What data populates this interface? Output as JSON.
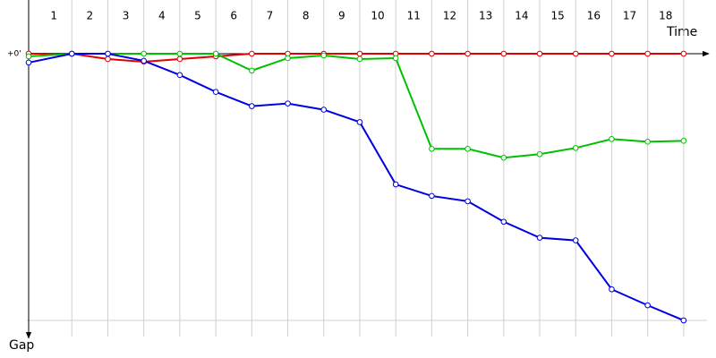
{
  "chart_data": {
    "type": "line",
    "x_label": "Time",
    "y_label": "Gap",
    "x": [
      -0.2,
      1,
      2,
      3,
      4,
      5,
      6,
      7,
      8,
      9,
      10,
      11,
      12,
      13,
      14,
      15,
      16,
      17,
      18
    ],
    "xlim": [
      -0.25,
      18.65
    ],
    "xticks": [
      1,
      2,
      3,
      4,
      5,
      6,
      7,
      8,
      9,
      10,
      11,
      12,
      13,
      14,
      15,
      16,
      17,
      18
    ],
    "ylim": [
      0,
      300
    ],
    "yticks": [
      {
        "value": 0,
        "label": "+0'"
      }
    ],
    "y_inverted": true,
    "grid": true,
    "series": [
      {
        "name": null,
        "color": "#e00000",
        "values": [
          0,
          0,
          6,
          9,
          6,
          3,
          0,
          0,
          0,
          0,
          0,
          0,
          0,
          0,
          0,
          0,
          0,
          0,
          0
        ]
      },
      {
        "name": null,
        "color": "#00c000",
        "values": [
          3,
          0,
          0,
          0,
          0,
          0,
          19,
          5,
          2,
          6,
          5,
          107,
          107,
          117,
          113,
          106,
          96,
          99,
          98
        ]
      },
      {
        "name": null,
        "color": "#0000e0",
        "values": [
          10,
          0,
          0,
          8,
          24,
          43,
          59,
          56,
          63,
          77,
          147,
          160,
          166,
          189,
          207,
          210,
          265,
          283,
          300
        ]
      }
    ]
  }
}
